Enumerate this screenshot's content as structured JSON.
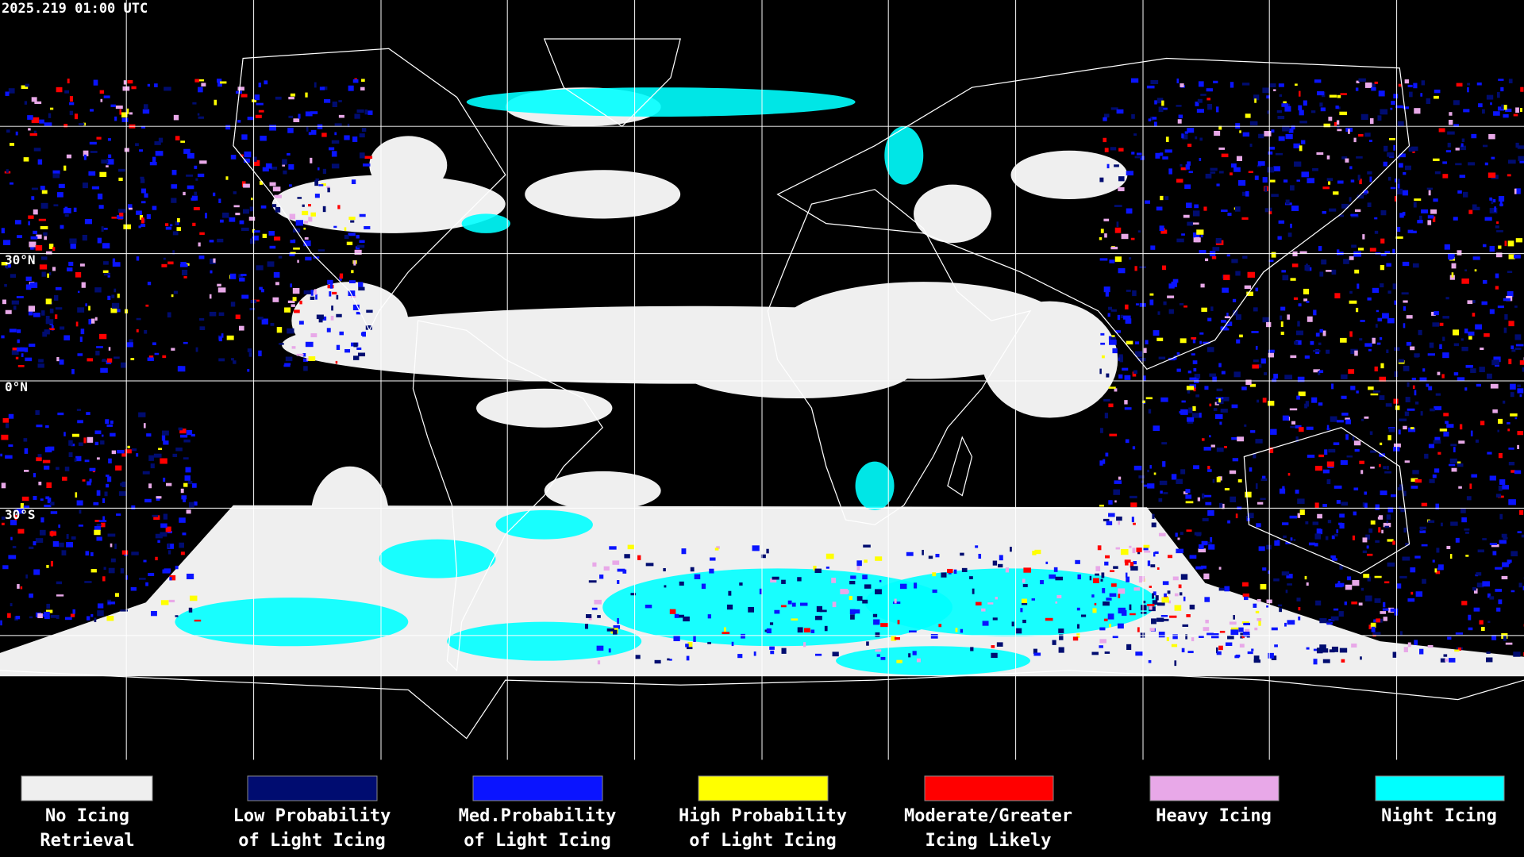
{
  "header": {
    "timestamp": "2025.219 01:00 UTC"
  },
  "latitude_labels": [
    "30°N",
    "0°N",
    "30°S"
  ],
  "legend": [
    {
      "lines": [
        "No Icing",
        "Retrieval"
      ],
      "color": "#efefef"
    },
    {
      "lines": [
        "Low Probability",
        "of Light Icing"
      ],
      "color": "#000c70"
    },
    {
      "lines": [
        "Med.Probability",
        "of Light Icing"
      ],
      "color": "#0a14ff"
    },
    {
      "lines": [
        "High Probability",
        "of Light Icing"
      ],
      "color": "#ffff00"
    },
    {
      "lines": [
        "Moderate/Greater",
        "Icing Likely"
      ],
      "color": "#ff0000"
    },
    {
      "lines": [
        "Heavy Icing"
      ],
      "color": "#e8a8e8"
    },
    {
      "lines": [
        "Night Icing"
      ],
      "color": "#00ffff"
    }
  ]
}
